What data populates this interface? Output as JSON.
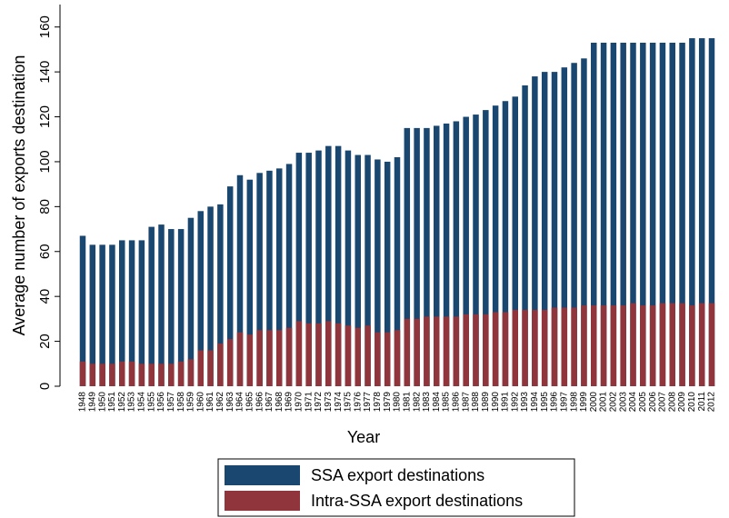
{
  "chart_data": {
    "type": "bar",
    "categories": [
      "1948",
      "1949",
      "1950",
      "1951",
      "1952",
      "1953",
      "1954",
      "1955",
      "1956",
      "1957",
      "1958",
      "1959",
      "1960",
      "1961",
      "1962",
      "1963",
      "1964",
      "1965",
      "1966",
      "1967",
      "1968",
      "1969",
      "1970",
      "1971",
      "1972",
      "1973",
      "1974",
      "1975",
      "1976",
      "1977",
      "1978",
      "1979",
      "1980",
      "1981",
      "1982",
      "1983",
      "1984",
      "1985",
      "1986",
      "1987",
      "1988",
      "1989",
      "1990",
      "1991",
      "1992",
      "1993",
      "1994",
      "1995",
      "1996",
      "1997",
      "1998",
      "1999",
      "2000",
      "2001",
      "2002",
      "2003",
      "2004",
      "2005",
      "2006",
      "2007",
      "2008",
      "2009",
      "2010",
      "2011",
      "2012"
    ],
    "series": [
      {
        "name": "SSA export destinations",
        "color": "#1a476f",
        "values": [
          67,
          63,
          63,
          63,
          65,
          65,
          65,
          71,
          72,
          70,
          70,
          75,
          78,
          80,
          81,
          89,
          94,
          92,
          95,
          96,
          97,
          99,
          104,
          104,
          105,
          107,
          107,
          105,
          103,
          103,
          101,
          100,
          102,
          115,
          115,
          115,
          116,
          117,
          118,
          120,
          121,
          123,
          125,
          127,
          129,
          134,
          138,
          140,
          140,
          142,
          144,
          146,
          153,
          153,
          153,
          153,
          153,
          153,
          153,
          153,
          153,
          153,
          155,
          155,
          155
        ]
      },
      {
        "name": "Intra-SSA export destinations",
        "color": "#90353b",
        "values": [
          11,
          10,
          10,
          10,
          11,
          11,
          10,
          10,
          10,
          10,
          11,
          12,
          16,
          16,
          19,
          21,
          24,
          23,
          25,
          25,
          25,
          26,
          29,
          28,
          28,
          29,
          28,
          27,
          26,
          27,
          24,
          24,
          25,
          30,
          30,
          31,
          31,
          31,
          31,
          32,
          32,
          32,
          33,
          33,
          34,
          34,
          34,
          34,
          35,
          35,
          35,
          36,
          36,
          36,
          36,
          36,
          37,
          36,
          36,
          37,
          37,
          37,
          36,
          37,
          37
        ]
      }
    ],
    "xlabel": "Year",
    "ylabel": "Average number of exports destination",
    "ylim": [
      0,
      170
    ],
    "yticks": [
      0,
      20,
      40,
      60,
      80,
      100,
      120,
      140,
      160
    ],
    "legend": "bottom"
  }
}
